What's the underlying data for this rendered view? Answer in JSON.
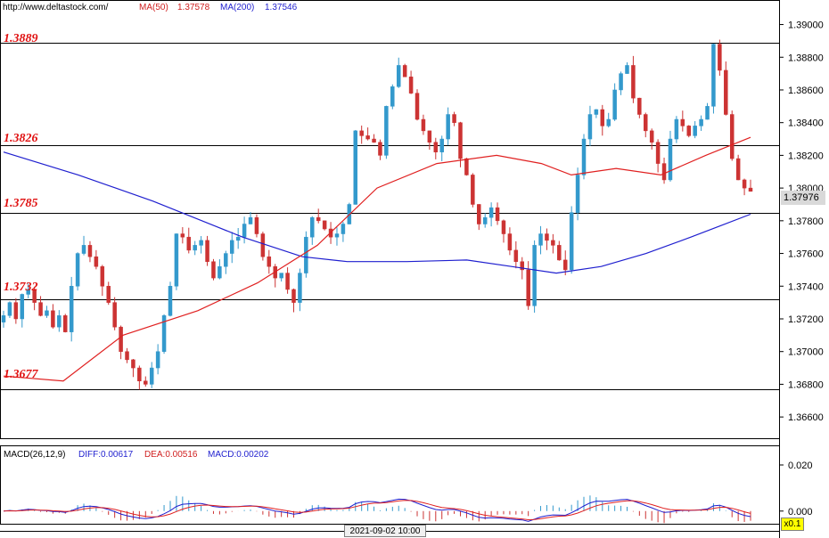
{
  "header": {
    "url": "http://www.deltastock.com/",
    "ma50_label": "MA(50)",
    "ma50_value": "1.37578",
    "ma200_label": "MA(200)",
    "ma200_value": "1.37546"
  },
  "macd_header": {
    "title": "MACD(26,12,9)",
    "diff": "DIFF:0.00617",
    "dea": "DEA:0.00516",
    "macd": "MACD:0.00202"
  },
  "colors": {
    "bull": "#3399cc",
    "bear": "#cc3333",
    "ma50": "#e02020",
    "ma200": "#1f1fcf",
    "level_text": "#e01010"
  },
  "levels": [
    "1.3889",
    "1.3826",
    "1.3785",
    "1.3732",
    "1.3677"
  ],
  "last_price": "1.37976",
  "date_label": "2021-09-02 10:00",
  "zoom": "x0.1",
  "chart_data": {
    "type": "candlestick",
    "price_axis": {
      "ylim": [
        1.3647,
        1.3915
      ],
      "ticks": [
        "1.39000",
        "1.38800",
        "1.38600",
        "1.38400",
        "1.38200",
        "1.38000",
        "1.37800",
        "1.37600",
        "1.37400",
        "1.37200",
        "1.37000",
        "1.36800",
        "1.36600"
      ]
    },
    "macd_axis": {
      "ylim": [
        -0.0055,
        0.0285
      ],
      "ticks": [
        "0.020",
        "0.000"
      ]
    },
    "horizontal_levels": [
      1.3889,
      1.3826,
      1.3785,
      1.3732,
      1.3677
    ],
    "close_path": [
      1.3722,
      1.373,
      1.372,
      1.3735,
      1.3738,
      1.373,
      1.3722,
      1.3725,
      1.3715,
      1.3722,
      1.3712,
      1.374,
      1.376,
      1.3765,
      1.3758,
      1.3752,
      1.374,
      1.373,
      1.3715,
      1.37,
      1.3695,
      1.369,
      1.3682,
      1.368,
      1.369,
      1.37,
      1.3722,
      1.374,
      1.3772,
      1.377,
      1.3762,
      1.3765,
      1.3768,
      1.3755,
      1.3745,
      1.3752,
      1.376,
      1.3768,
      1.377,
      1.3778,
      1.3782,
      1.3772,
      1.3758,
      1.3752,
      1.3745,
      1.3748,
      1.3738,
      1.373,
      1.3748,
      1.377,
      1.3782,
      1.378,
      1.3775,
      1.377,
      1.3772,
      1.3778,
      1.379,
      1.3835,
      1.3832,
      1.383,
      1.3828,
      1.382,
      1.385,
      1.3862,
      1.3875,
      1.3868,
      1.3858,
      1.3842,
      1.3835,
      1.3828,
      1.3822,
      1.383,
      1.3845,
      1.384,
      1.3818,
      1.3808,
      1.379,
      1.3778,
      1.3782,
      1.3788,
      1.378,
      1.3772,
      1.3762,
      1.3755,
      1.375,
      1.3728,
      1.3765,
      1.3772,
      1.3768,
      1.3765,
      1.3756,
      1.375,
      1.3785,
      1.3808,
      1.383,
      1.3845,
      1.3848,
      1.3838,
      1.3842,
      1.386,
      1.387,
      1.3875,
      1.3855,
      1.3845,
      1.3835,
      1.3828,
      1.3815,
      1.3805,
      1.383,
      1.3842,
      1.3838,
      1.3832,
      1.3838,
      1.3842,
      1.385,
      1.3888,
      1.3872,
      1.3845,
      1.3818,
      1.3805,
      1.38,
      1.3798
    ],
    "ma50_path": [
      [
        0,
        1.3685
      ],
      [
        0.08,
        1.3682
      ],
      [
        0.16,
        1.371
      ],
      [
        0.26,
        1.3725
      ],
      [
        0.34,
        1.3742
      ],
      [
        0.42,
        1.3765
      ],
      [
        0.5,
        1.38
      ],
      [
        0.58,
        1.3815
      ],
      [
        0.66,
        1.382
      ],
      [
        0.72,
        1.3815
      ],
      [
        0.76,
        1.3808
      ],
      [
        0.82,
        1.3812
      ],
      [
        0.88,
        1.3808
      ],
      [
        0.94,
        1.382
      ],
      [
        1.0,
        1.3831
      ]
    ],
    "ma200_path": [
      [
        0,
        1.3822
      ],
      [
        0.1,
        1.3808
      ],
      [
        0.2,
        1.3792
      ],
      [
        0.32,
        1.377
      ],
      [
        0.4,
        1.3758
      ],
      [
        0.46,
        1.3755
      ],
      [
        0.54,
        1.3755
      ],
      [
        0.62,
        1.3756
      ],
      [
        0.68,
        1.3752
      ],
      [
        0.74,
        1.3748
      ],
      [
        0.8,
        1.3752
      ],
      [
        0.86,
        1.376
      ],
      [
        0.92,
        1.377
      ],
      [
        1.0,
        1.3784
      ]
    ]
  }
}
